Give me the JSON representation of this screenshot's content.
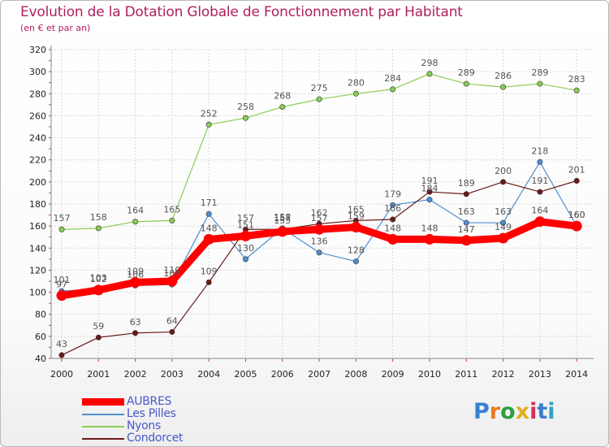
{
  "title": "Evolution de la Dotation Globale de Fonctionnement par Habitant",
  "subtitle": "(en € et par an)",
  "logo_text": "Proxiti",
  "chart_data": {
    "type": "line",
    "title": "Evolution de la Dotation Globale de Fonctionnement par Habitant",
    "subtitle": "(en € et par an)",
    "xlabel": "",
    "ylabel": "",
    "x": [
      "2000",
      "2001",
      "2002",
      "2003",
      "2004",
      "2005",
      "2006",
      "2007",
      "2008",
      "2009",
      "2010",
      "2011",
      "2012",
      "2013",
      "2014"
    ],
    "ylim": [
      40,
      320
    ],
    "yticks": [
      40,
      60,
      80,
      100,
      120,
      140,
      160,
      180,
      200,
      220,
      240,
      260,
      280,
      300,
      320
    ],
    "grid": true,
    "legend_position": "bottom-left",
    "series": [
      {
        "name": "AUBRES",
        "color": "#ff0000",
        "emphasis": true,
        "values": [
          97,
          102,
          109,
          110,
          148,
          151,
          155,
          157,
          159,
          148,
          148,
          147,
          149,
          164,
          160
        ]
      },
      {
        "name": "Les Pilles",
        "color": "#4f8fcf",
        "emphasis": false,
        "values": [
          101,
          103,
          106,
          107,
          171,
          130,
          158,
          136,
          128,
          179,
          184,
          163,
          163,
          218,
          160
        ]
      },
      {
        "name": "Nyons",
        "color": "#88cc55",
        "emphasis": false,
        "values": [
          157,
          158,
          164,
          165,
          252,
          258,
          268,
          275,
          280,
          284,
          298,
          289,
          286,
          289,
          283
        ]
      },
      {
        "name": "Condorcet",
        "color": "#6b1a1a",
        "emphasis": false,
        "values": [
          43,
          59,
          63,
          64,
          109,
          157,
          157,
          162,
          165,
          166,
          191,
          189,
          200,
          191,
          201
        ]
      }
    ]
  }
}
